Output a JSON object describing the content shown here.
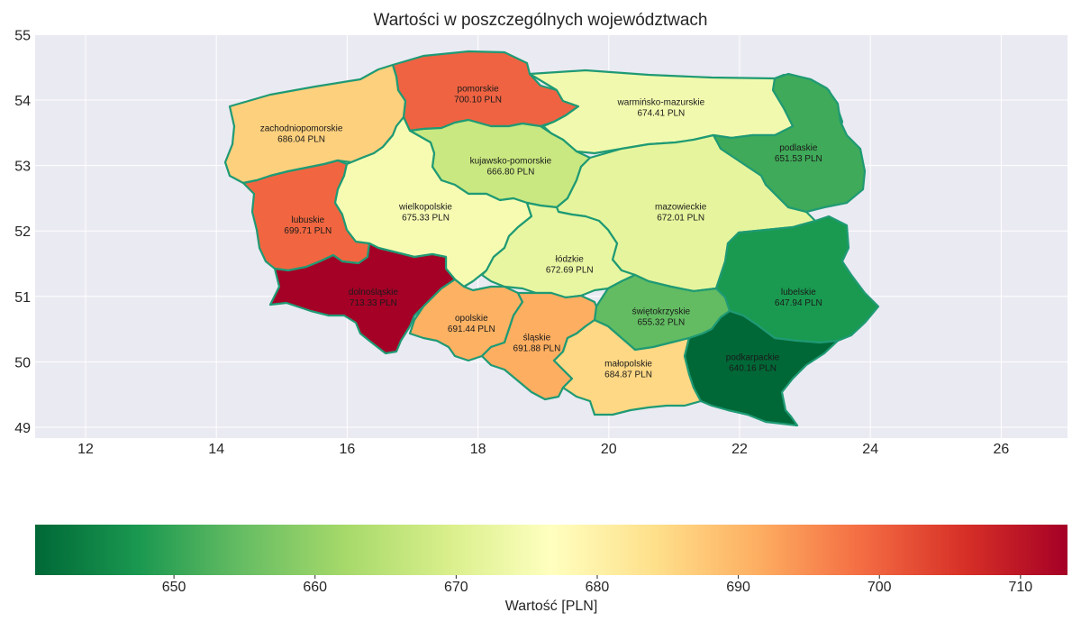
{
  "chart_data": {
    "type": "choropleth",
    "title": "Wartości w poszczególnych województwach",
    "x_ticks": [
      12,
      14,
      16,
      18,
      20,
      22,
      24,
      26
    ],
    "y_ticks": [
      49,
      50,
      51,
      52,
      53,
      54,
      55
    ],
    "xlim": [
      11.2,
      27.0
    ],
    "ylim": [
      48.85,
      55.0
    ],
    "grid": true,
    "colormap": "RdYlGn_r",
    "colorbar": {
      "label": "Wartość [PLN]",
      "ticks": [
        650,
        660,
        670,
        680,
        690,
        700,
        710
      ],
      "range": [
        640.16,
        713.33
      ],
      "placement": "bottom"
    },
    "regions": [
      {
        "name": "pomorskie",
        "value_text": "700.10 PLN",
        "value": 700.1,
        "color": "#ef6342",
        "lon": 18.0,
        "lat": 54.1
      },
      {
        "name": "warmińsko-mazurskie",
        "value_text": "674.41 PLN",
        "value": 674.41,
        "color": "#f1f9ae",
        "lon": 20.8,
        "lat": 53.9
      },
      {
        "name": "zachodniopomorskie",
        "value_text": "686.04 PLN",
        "value": 686.04,
        "color": "#fdd07d",
        "lon": 15.3,
        "lat": 53.5
      },
      {
        "name": "podlaskie",
        "value_text": "651.53 PLN",
        "value": 651.53,
        "color": "#3faa59",
        "lon": 22.9,
        "lat": 53.2
      },
      {
        "name": "kujawsko-pomorskie",
        "value_text": "666.80 PLN",
        "value": 666.8,
        "color": "#c9e881",
        "lon": 18.5,
        "lat": 53.0
      },
      {
        "name": "lubuskie",
        "value_text": "699.71 PLN",
        "value": 699.71,
        "color": "#f16640",
        "lon": 15.4,
        "lat": 52.1
      },
      {
        "name": "wielkopolskie",
        "value_text": "675.33 PLN",
        "value": 675.33,
        "color": "#f7fbb2",
        "lon": 17.2,
        "lat": 52.3
      },
      {
        "name": "mazowieckie",
        "value_text": "672.01 PLN",
        "value": 672.01,
        "color": "#e6f59d",
        "lon": 21.1,
        "lat": 52.3
      },
      {
        "name": "łódzkie",
        "value_text": "672.69 PLN",
        "value": 672.69,
        "color": "#e9f6a1",
        "lon": 19.4,
        "lat": 51.5
      },
      {
        "name": "dolnośląskie",
        "value_text": "713.33 PLN",
        "value": 713.33,
        "color": "#a50026",
        "lon": 16.4,
        "lat": 51.0
      },
      {
        "name": "lubelskie",
        "value_text": "647.94 PLN",
        "value": 647.94,
        "color": "#199a50",
        "lon": 22.9,
        "lat": 51.0
      },
      {
        "name": "opolskie",
        "value_text": "691.44 PLN",
        "value": 691.44,
        "color": "#fdb163",
        "lon": 17.9,
        "lat": 50.6
      },
      {
        "name": "świętokrzyskie",
        "value_text": "655.32 PLN",
        "value": 655.32,
        "color": "#63bc62",
        "lon": 20.8,
        "lat": 50.7
      },
      {
        "name": "śląskie",
        "value_text": "691.88 PLN",
        "value": 691.88,
        "color": "#fdae61",
        "lon": 18.9,
        "lat": 50.3
      },
      {
        "name": "małopolskie",
        "value_text": "684.87 PLN",
        "value": 684.87,
        "color": "#fed884",
        "lon": 20.3,
        "lat": 49.9
      },
      {
        "name": "podkarpackie",
        "value_text": "640.16 PLN",
        "value": 640.16,
        "color": "#006837",
        "lon": 22.2,
        "lat": 50.0
      }
    ]
  }
}
